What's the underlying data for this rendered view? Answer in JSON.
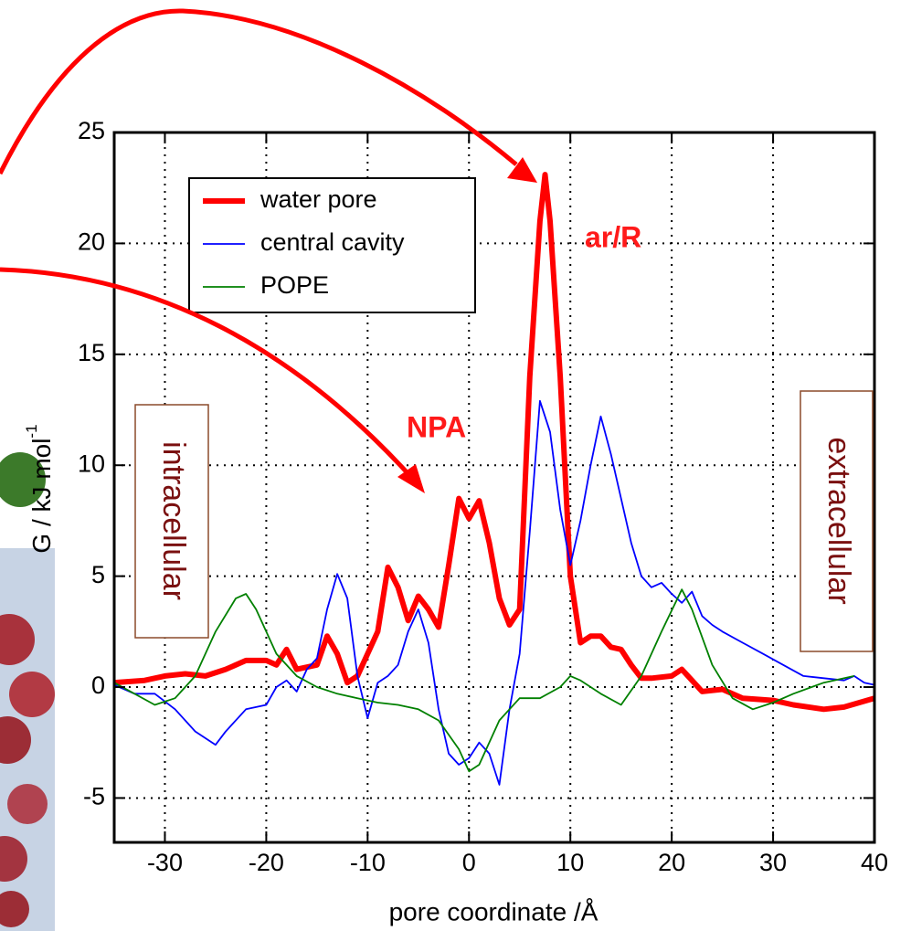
{
  "chart_data": {
    "type": "line",
    "x_label": "pore coordinate /Å",
    "y_label": "G / kJ mol",
    "y_label_sup": "-1",
    "xlim": [
      -35,
      40
    ],
    "xticks": [
      -30,
      -20,
      -10,
      0,
      10,
      20,
      30,
      40
    ],
    "ylim": [
      -7,
      25
    ],
    "yticks": [
      -5,
      0,
      5,
      10,
      15,
      20,
      25
    ],
    "grid": true,
    "legend": "upper left",
    "annotations": {
      "peak": "ar/R",
      "npa": "NPA",
      "left": "intracellular",
      "right": "extracellular"
    },
    "series": [
      {
        "name": "water pore",
        "color": "#ff0000",
        "x": [
          -35,
          -32,
          -30,
          -28,
          -26,
          -24,
          -22,
          -20,
          -19,
          -18,
          -17,
          -15,
          -14,
          -13,
          -12,
          -11,
          -10,
          -9,
          -8,
          -7,
          -6,
          -5,
          -4,
          -3,
          -2,
          -1,
          0,
          1,
          2,
          3,
          4,
          5,
          6,
          7,
          7.5,
          8,
          9,
          10,
          11,
          12,
          13,
          14,
          15,
          16,
          17,
          18,
          20,
          21,
          22,
          23,
          25,
          27,
          30,
          32,
          35,
          37,
          40
        ],
        "values": [
          0.2,
          0.3,
          0.5,
          0.6,
          0.5,
          0.8,
          1.2,
          1.2,
          1.0,
          1.7,
          0.8,
          1.0,
          2.3,
          1.5,
          0.2,
          0.5,
          1.5,
          2.5,
          5.4,
          4.5,
          3.0,
          4.1,
          3.5,
          2.7,
          5.5,
          8.5,
          7.6,
          8.4,
          6.5,
          4.0,
          2.8,
          3.5,
          14,
          21,
          23.1,
          21,
          14,
          5,
          2,
          2.3,
          2.3,
          1.8,
          1.7,
          1.0,
          0.4,
          0.4,
          0.5,
          0.8,
          0.3,
          -0.2,
          -0.1,
          -0.5,
          -0.6,
          -0.8,
          -1.0,
          -0.9,
          -0.5
        ]
      },
      {
        "name": "central cavity",
        "color": "#0000ff",
        "x": [
          -35,
          -33,
          -31,
          -29,
          -27,
          -25,
          -24,
          -22,
          -20,
          -19,
          -18,
          -17,
          -16,
          -15,
          -14,
          -13,
          -12,
          -11,
          -10,
          -9,
          -8,
          -7,
          -6,
          -5,
          -4,
          -3,
          -2,
          -1,
          0,
          1,
          2,
          3,
          4,
          5,
          6,
          7,
          8,
          9,
          10,
          11,
          12,
          13,
          14,
          15,
          16,
          17,
          18,
          19,
          20,
          21,
          22,
          23,
          24,
          25,
          27,
          29,
          31,
          33,
          35,
          37,
          38,
          39,
          40
        ],
        "values": [
          0.1,
          -0.3,
          -0.3,
          -1.0,
          -2.0,
          -2.6,
          -2.0,
          -1.0,
          -0.8,
          0,
          0.3,
          -0.2,
          0.8,
          1.3,
          3.5,
          5.1,
          4.0,
          0.5,
          -1.4,
          0.2,
          0.5,
          1.0,
          2.5,
          3.5,
          2.0,
          -1.0,
          -3.0,
          -3.5,
          -3.2,
          -2.5,
          -3.0,
          -4.4,
          -1.0,
          1.5,
          7.0,
          12.9,
          11.5,
          8.0,
          5.5,
          7.5,
          10.0,
          12.2,
          10.5,
          8.5,
          6.5,
          5.0,
          4.5,
          4.7,
          4.2,
          3.8,
          4.3,
          3.2,
          2.8,
          2.5,
          2.0,
          1.5,
          1.0,
          0.5,
          0.4,
          0.3,
          0.5,
          0.2,
          0.1
        ]
      },
      {
        "name": "POPE",
        "color": "#008000",
        "x": [
          -35,
          -33,
          -31,
          -29,
          -27,
          -25,
          -23,
          -22,
          -21,
          -19,
          -17,
          -15,
          -13,
          -11,
          -9,
          -7,
          -5,
          -3,
          -1,
          0,
          1,
          3,
          5,
          7,
          9,
          10,
          11,
          13,
          15,
          17,
          19,
          21,
          22,
          24,
          26,
          28,
          30,
          32,
          35,
          38
        ],
        "values": [
          0.2,
          -0.3,
          -0.8,
          -0.5,
          0.5,
          2.5,
          4.0,
          4.2,
          3.5,
          1.5,
          0.5,
          0.0,
          -0.3,
          -0.5,
          -0.7,
          -0.8,
          -1.0,
          -1.5,
          -2.8,
          -3.8,
          -3.5,
          -1.5,
          -0.5,
          -0.5,
          0.0,
          0.5,
          0.3,
          -0.3,
          -0.8,
          0.5,
          2.5,
          4.4,
          3.5,
          1.0,
          -0.5,
          -1.0,
          -0.7,
          -0.3,
          0.2,
          0.5
        ]
      }
    ]
  }
}
